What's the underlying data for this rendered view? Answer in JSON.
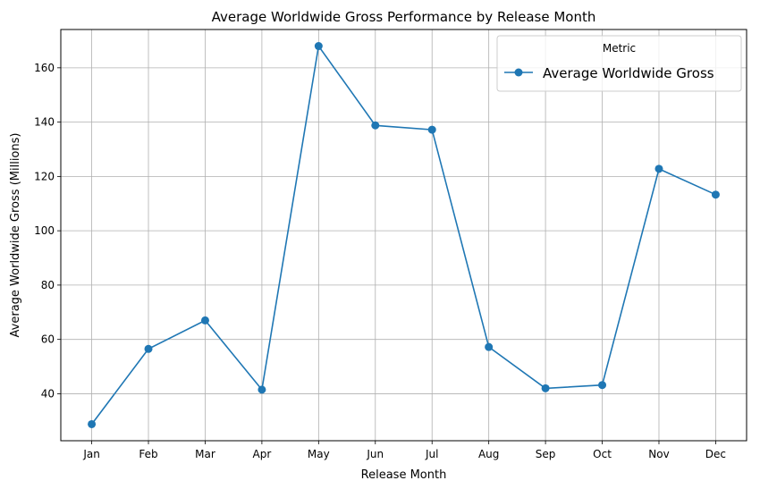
{
  "chart_data": {
    "type": "line",
    "title": "Average Worldwide Gross Performance by Release Month",
    "xlabel": "Release Month",
    "ylabel": "Average Worldwide Gross (Millions)",
    "categories": [
      "Jan",
      "Feb",
      "Mar",
      "Apr",
      "May",
      "Jun",
      "Jul",
      "Aug",
      "Sep",
      "Oct",
      "Nov",
      "Dec"
    ],
    "series": [
      {
        "name": "Average Worldwide Gross",
        "values": [
          28.8,
          56.5,
          67.0,
          41.5,
          168.0,
          138.8,
          137.2,
          57.2,
          42.0,
          43.2,
          122.8,
          113.3
        ],
        "color": "#1f77b4",
        "marker": "circle"
      }
    ],
    "ylim": [
      22.7,
      174.1
    ],
    "yticks": [
      40,
      60,
      80,
      100,
      120,
      140,
      160
    ],
    "grid": true,
    "legend": {
      "title": "Metric",
      "position": "top-right"
    }
  }
}
